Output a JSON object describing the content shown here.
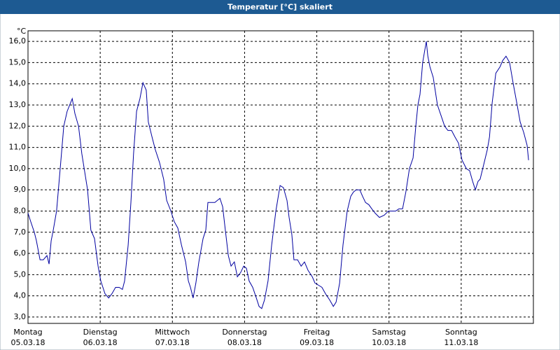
{
  "chart_data": {
    "type": "line",
    "title": "Temperatur [°C] skaliert",
    "y_unit": "°C",
    "x": [
      0,
      0.9,
      2.1,
      2.8,
      4.0,
      5.1,
      6.3,
      7.0,
      7.7,
      8.4,
      9.5,
      10.7,
      11.9,
      13.0,
      14.7,
      15.6,
      16.8,
      17.9,
      19.8,
      20.9,
      22.1,
      23.3,
      24.2,
      25.6,
      26.8,
      27.9,
      29.1,
      30.3,
      31.4,
      32.1,
      33.3,
      34.2,
      35.1,
      36.1,
      37.2,
      38.2,
      39.3,
      40.0,
      41.2,
      42.3,
      43.7,
      45.1,
      46.1,
      47.5,
      48.6,
      49.8,
      51.0,
      52.4,
      53.3,
      54.0,
      54.9,
      55.8,
      56.8,
      58.2,
      59.1,
      59.8,
      61.0,
      62.1,
      63.8,
      64.7,
      65.6,
      66.6,
      67.5,
      68.6,
      69.6,
      70.7,
      71.7,
      72.6,
      73.5,
      74.7,
      75.9,
      76.8,
      77.7,
      78.6,
      79.8,
      81.0,
      82.4,
      83.8,
      84.9,
      86.1,
      86.8,
      87.7,
      88.4,
      89.6,
      90.8,
      91.9,
      93.1,
      94.5,
      95.4,
      96.6,
      97.7,
      98.9,
      100.3,
      101.5,
      102.4,
      103.6,
      104.7,
      106.1,
      107.3,
      108.2,
      109.1,
      110.3,
      111.2,
      112.2,
      113.3,
      114.3,
      115.4,
      116.8,
      118.4,
      119.8,
      121.0,
      122.2,
      123.3,
      124.5,
      125.6,
      126.8,
      128.0,
      128.9,
      129.6,
      130.3,
      131.2,
      132.4,
      132.9,
      133.6,
      134.7,
      136.1,
      137.3,
      138.5,
      139.6,
      140.8,
      141.9,
      143.1,
      144.3,
      145.7,
      146.8,
      147.8,
      148.7,
      149.6,
      150.3,
      151.5,
      152.7,
      153.4,
      154.3,
      155.5,
      156.9,
      157.8,
      158.9,
      160.1,
      161.3,
      162.6,
      163.6,
      164.8,
      165.9,
      166.4
    ],
    "series": [
      {
        "color": "#0000a0",
        "values": [
          7.9,
          7.5,
          7.0,
          6.6,
          5.7,
          5.7,
          5.9,
          5.5,
          6.6,
          7.1,
          8.0,
          10.0,
          12.0,
          12.7,
          13.3,
          12.6,
          12.0,
          10.7,
          9.0,
          7.1,
          6.7,
          5.4,
          4.7,
          4.1,
          3.9,
          4.1,
          4.4,
          4.4,
          4.3,
          4.7,
          6.4,
          8.4,
          10.7,
          12.7,
          13.3,
          14.05,
          13.7,
          12.2,
          11.5,
          10.9,
          10.3,
          9.5,
          8.5,
          8.0,
          7.5,
          7.2,
          6.4,
          5.6,
          4.7,
          4.4,
          3.9,
          4.6,
          5.6,
          6.7,
          7.1,
          8.4,
          8.4,
          8.4,
          8.6,
          8.2,
          7.1,
          5.9,
          5.4,
          5.6,
          4.9,
          5.1,
          5.4,
          5.3,
          4.7,
          4.4,
          3.9,
          3.5,
          3.4,
          3.8,
          4.7,
          6.4,
          8.0,
          9.2,
          9.1,
          8.5,
          7.7,
          6.9,
          5.7,
          5.7,
          5.4,
          5.6,
          5.2,
          4.9,
          4.6,
          4.5,
          4.4,
          4.1,
          3.8,
          3.5,
          3.7,
          4.6,
          6.4,
          8.0,
          8.7,
          8.9,
          9.0,
          9.0,
          8.7,
          8.4,
          8.3,
          8.1,
          7.9,
          7.7,
          7.8,
          8.0,
          8.0,
          8.0,
          8.1,
          8.1,
          8.9,
          10.0,
          10.5,
          12.0,
          13.0,
          13.5,
          15.0,
          16.0,
          15.3,
          14.8,
          14.3,
          13.0,
          12.5,
          12.0,
          11.8,
          11.8,
          11.5,
          11.2,
          10.4,
          10.0,
          9.9,
          9.4,
          9.0,
          9.4,
          9.5,
          10.2,
          10.9,
          11.5,
          13.1,
          14.5,
          14.8,
          15.1,
          15.3,
          15.0,
          14.0,
          13.0,
          12.2,
          11.7,
          11.1,
          10.4
        ]
      }
    ],
    "xlim": [
      0,
      168
    ],
    "xticks": [
      {
        "value": 0,
        "label": "Montag"
      },
      {
        "value": 24,
        "label": "Dienstag"
      },
      {
        "value": 48,
        "label": "Mittwoch"
      },
      {
        "value": 72,
        "label": "Donnerstag"
      },
      {
        "value": 96,
        "label": "Freitag"
      },
      {
        "value": 120,
        "label": "Samstag"
      },
      {
        "value": 144,
        "label": "Sonntag"
      }
    ],
    "xtick_dates": [
      "05.03.18",
      "06.03.18",
      "07.03.18",
      "08.03.18",
      "09.03.18",
      "10.03.18",
      "11.03.18"
    ],
    "ylim": [
      2.7,
      16.5
    ],
    "yticks": [
      {
        "value": 3,
        "label": "3,0"
      },
      {
        "value": 4,
        "label": "4,0"
      },
      {
        "value": 5,
        "label": "5,0"
      },
      {
        "value": 6,
        "label": "6,0"
      },
      {
        "value": 7,
        "label": "7,0"
      },
      {
        "value": 8,
        "label": "8,0"
      },
      {
        "value": 9,
        "label": "9,0"
      },
      {
        "value": 10,
        "label": "10,0"
      },
      {
        "value": 11,
        "label": "11,0"
      },
      {
        "value": 12,
        "label": "12,0"
      },
      {
        "value": 13,
        "label": "13,0"
      },
      {
        "value": 14,
        "label": "14,0"
      },
      {
        "value": 15,
        "label": "15,0"
      },
      {
        "value": 16,
        "label": "16,0"
      }
    ],
    "grid": true
  }
}
